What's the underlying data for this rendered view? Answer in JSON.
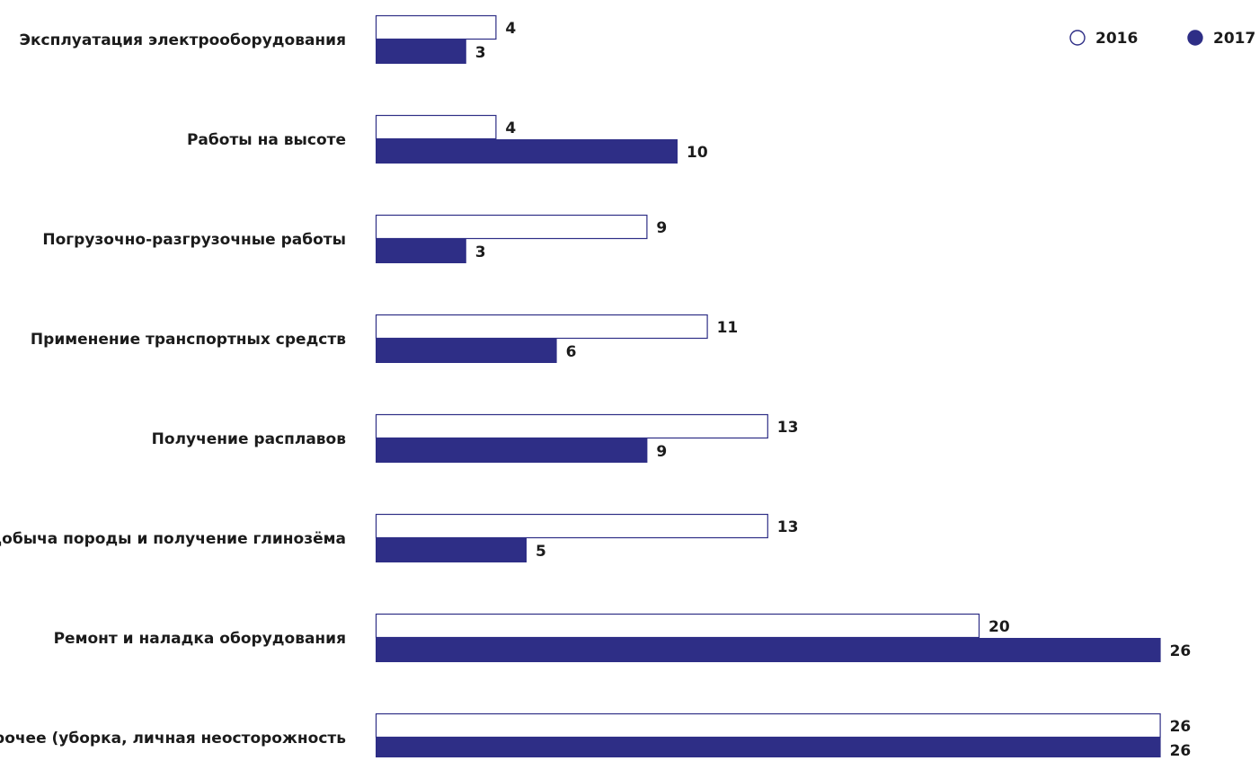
{
  "chart_data": {
    "type": "bar",
    "orientation": "horizontal",
    "categories": [
      "Эксплуатация электрооборудования",
      "Работы на высоте",
      "Погрузочно-разгрузочные работы",
      "Применение транспортных средств",
      "Получение расплавов",
      "Добыча породы и получение глинозёма",
      "Ремонт и наладка оборудования",
      "Прочее (уборка, личная неосторожность"
    ],
    "series": [
      {
        "name": "2016",
        "values": [
          4,
          4,
          9,
          11,
          13,
          13,
          20,
          26
        ],
        "color": "#ffffff",
        "stroke": "#2e2e86"
      },
      {
        "name": "2017",
        "values": [
          3,
          10,
          3,
          6,
          9,
          5,
          26,
          26
        ],
        "color": "#2e2e86",
        "stroke": "#2e2e86"
      }
    ],
    "xlim": [
      0,
      26
    ],
    "grid": false,
    "legend_position": "top-right",
    "title": "",
    "xlabel": "",
    "ylabel": ""
  }
}
